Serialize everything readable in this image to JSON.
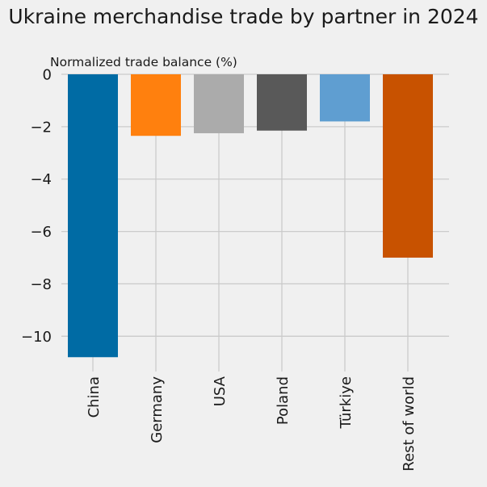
{
  "chart_data": {
    "type": "bar",
    "title": "Ukraine merchandise trade by partner in 2024",
    "xlabel": "",
    "ylabel": "Normalized trade balance (%)",
    "categories": [
      "China",
      "Germany",
      "USA",
      "Poland",
      "Türkiye",
      "Rest of world"
    ],
    "values": [
      -10.8,
      -2.35,
      -2.25,
      -2.15,
      -1.8,
      -7.0
    ],
    "colors": [
      "#006ba4",
      "#ff800e",
      "#ababab",
      "#595959",
      "#5f9ed1",
      "#c85200"
    ],
    "ylim": [
      -11.1,
      0
    ],
    "yticks": [
      0,
      -2,
      -4,
      -6,
      -8,
      -10
    ],
    "ytick_labels": [
      "0",
      "−2",
      "−4",
      "−6",
      "−8",
      "−10"
    ],
    "grid": true,
    "style": "fivethirtyeight"
  }
}
